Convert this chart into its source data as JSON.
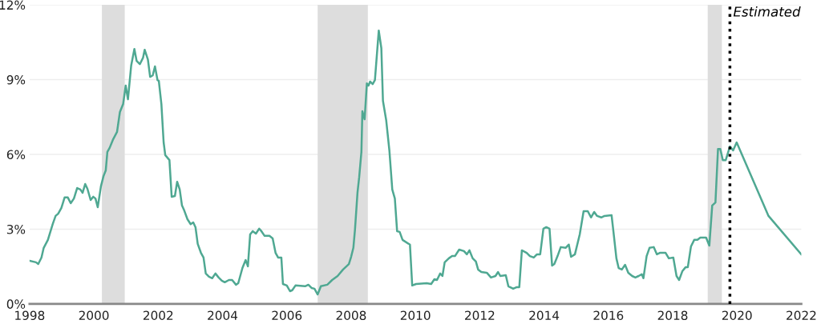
{
  "chart_data": {
    "type": "line",
    "xlim": [
      1998,
      2022
    ],
    "xticks": [
      1998,
      2000,
      2002,
      2004,
      2006,
      2008,
      2010,
      2012,
      2014,
      2016,
      2018,
      2020,
      2022
    ],
    "ylim": [
      0,
      12
    ],
    "yticks": [
      {
        "value": 0,
        "label": "0%"
      },
      {
        "value": 3,
        "label": "3%"
      },
      {
        "value": 6,
        "label": "6%"
      },
      {
        "value": 9,
        "label": "9%"
      },
      {
        "value": 12,
        "label": "12%"
      }
    ],
    "grid": "y",
    "legend": false,
    "marker": "none",
    "line_style": "solid",
    "bands": [
      {
        "axis": "x",
        "from": 2000.25,
        "to": 2000.96,
        "color": "#dddddd"
      },
      {
        "axis": "x",
        "from": 2006.96,
        "to": 2008.52,
        "color": "#dddddd"
      },
      {
        "axis": "x",
        "from": 2019.09,
        "to": 2019.53,
        "color": "#dddddd"
      }
    ],
    "ref_lines": [
      {
        "axis": "x",
        "value": 2019.78,
        "label": "Estimated",
        "color": "#000000",
        "line_style": "dotted"
      }
    ],
    "series": [
      {
        "color": "#4fa892",
        "x": [
          1998.0,
          1998.2,
          1998.27,
          1998.37,
          1998.44,
          1998.57,
          1998.72,
          1998.81,
          1998.89,
          1998.99,
          1999.09,
          1999.19,
          1999.28,
          1999.38,
          1999.48,
          1999.58,
          1999.65,
          1999.73,
          1999.8,
          1999.9,
          1999.98,
          2000.05,
          2000.12,
          2000.22,
          2000.3,
          2000.37,
          2000.42,
          2000.49,
          2000.59,
          2000.72,
          2000.81,
          2000.91,
          2000.99,
          2001.06,
          2001.16,
          2001.26,
          2001.33,
          2001.43,
          2001.53,
          2001.58,
          2001.68,
          2001.75,
          2001.83,
          2001.9,
          2001.98,
          2002.02,
          2002.1,
          2002.17,
          2002.22,
          2002.35,
          2002.42,
          2002.52,
          2002.59,
          2002.67,
          2002.74,
          2002.81,
          2002.91,
          2003.01,
          2003.09,
          2003.16,
          2003.23,
          2003.33,
          2003.41,
          2003.48,
          2003.58,
          2003.68,
          2003.78,
          2003.88,
          2003.98,
          2004.07,
          2004.2,
          2004.3,
          2004.42,
          2004.49,
          2004.62,
          2004.72,
          2004.79,
          2004.86,
          2004.94,
          2005.04,
          2005.14,
          2005.21,
          2005.31,
          2005.46,
          2005.56,
          2005.65,
          2005.73,
          2005.83,
          2005.88,
          2006.0,
          2006.1,
          2006.17,
          2006.27,
          2006.57,
          2006.67,
          2006.77,
          2006.86,
          2006.96,
          2007.06,
          2007.26,
          2007.41,
          2007.58,
          2007.75,
          2007.93,
          2008.0,
          2008.07,
          2008.12,
          2008.2,
          2008.25,
          2008.32,
          2008.35,
          2008.42,
          2008.49,
          2008.54,
          2008.59,
          2008.67,
          2008.74,
          2008.86,
          2008.94,
          2008.99,
          2009.09,
          2009.19,
          2009.28,
          2009.36,
          2009.43,
          2009.51,
          2009.6,
          2009.83,
          2009.9,
          2010.02,
          2010.35,
          2010.49,
          2010.59,
          2010.67,
          2010.77,
          2010.84,
          2010.91,
          2011.04,
          2011.14,
          2011.23,
          2011.36,
          2011.51,
          2011.6,
          2011.68,
          2011.78,
          2011.88,
          2011.95,
          2012.05,
          2012.22,
          2012.35,
          2012.49,
          2012.57,
          2012.64,
          2012.81,
          2012.89,
          2013.04,
          2013.14,
          2013.23,
          2013.31,
          2013.46,
          2013.56,
          2013.68,
          2013.78,
          2013.88,
          2013.98,
          2014.07,
          2014.17,
          2014.25,
          2014.32,
          2014.42,
          2014.52,
          2014.67,
          2014.77,
          2014.84,
          2014.96,
          2015.11,
          2015.23,
          2015.36,
          2015.46,
          2015.56,
          2015.65,
          2015.78,
          2015.88,
          2016.1,
          2016.17,
          2016.25,
          2016.32,
          2016.42,
          2016.52,
          2016.62,
          2016.74,
          2016.84,
          2016.94,
          2017.04,
          2017.09,
          2017.19,
          2017.28,
          2017.41,
          2017.51,
          2017.6,
          2017.78,
          2017.88,
          2018.02,
          2018.12,
          2018.2,
          2018.3,
          2018.4,
          2018.47,
          2018.57,
          2018.67,
          2018.77,
          2018.86,
          2019.04,
          2019.14,
          2019.23,
          2019.33,
          2019.41,
          2019.48,
          2019.56,
          2019.65,
          2019.78,
          2019.88,
          2019.99,
          2020.98,
          2022.0
        ],
        "values": [
          1.73,
          1.67,
          1.6,
          1.86,
          2.25,
          2.57,
          3.2,
          3.53,
          3.62,
          3.85,
          4.27,
          4.27,
          4.04,
          4.23,
          4.65,
          4.59,
          4.46,
          4.81,
          4.62,
          4.17,
          4.3,
          4.23,
          3.88,
          4.72,
          5.13,
          5.36,
          6.1,
          6.26,
          6.58,
          6.9,
          7.7,
          8.02,
          8.76,
          8.21,
          9.56,
          10.23,
          9.75,
          9.62,
          9.88,
          10.2,
          9.81,
          9.11,
          9.17,
          9.53,
          8.98,
          8.95,
          8.02,
          6.48,
          5.97,
          5.77,
          4.3,
          4.33,
          4.9,
          4.59,
          3.95,
          3.75,
          3.4,
          3.2,
          3.27,
          3.08,
          2.41,
          2.05,
          1.86,
          1.22,
          1.09,
          1.03,
          1.22,
          1.06,
          0.93,
          0.87,
          0.96,
          0.96,
          0.77,
          0.83,
          1.44,
          1.76,
          1.51,
          2.79,
          2.92,
          2.82,
          3.02,
          2.92,
          2.73,
          2.73,
          2.63,
          2.05,
          1.86,
          1.86,
          0.8,
          0.74,
          0.51,
          0.55,
          0.74,
          0.71,
          0.77,
          0.64,
          0.61,
          0.38,
          0.71,
          0.77,
          0.96,
          1.12,
          1.38,
          1.6,
          1.89,
          2.25,
          2.98,
          4.49,
          5.07,
          6.1,
          7.73,
          7.41,
          8.85,
          8.76,
          8.92,
          8.82,
          8.98,
          10.97,
          10.26,
          8.15,
          7.38,
          6.16,
          4.59,
          4.23,
          2.92,
          2.89,
          2.57,
          2.38,
          0.74,
          0.8,
          0.83,
          0.8,
          0.99,
          0.96,
          1.22,
          1.12,
          1.67,
          1.83,
          1.92,
          1.92,
          2.18,
          2.12,
          1.99,
          2.15,
          1.83,
          1.7,
          1.38,
          1.28,
          1.25,
          1.06,
          1.12,
          1.28,
          1.12,
          1.15,
          0.71,
          0.61,
          0.67,
          0.67,
          2.15,
          2.05,
          1.92,
          1.86,
          1.99,
          1.99,
          3.02,
          3.08,
          3.02,
          1.54,
          1.6,
          1.92,
          2.28,
          2.25,
          2.38,
          1.89,
          1.99,
          2.79,
          3.72,
          3.72,
          3.47,
          3.69,
          3.53,
          3.47,
          3.53,
          3.56,
          2.76,
          1.83,
          1.44,
          1.38,
          1.57,
          1.25,
          1.12,
          1.06,
          1.12,
          1.19,
          1.03,
          1.92,
          2.25,
          2.28,
          1.99,
          2.05,
          2.05,
          1.83,
          1.86,
          1.12,
          0.96,
          1.31,
          1.47,
          1.47,
          2.31,
          2.57,
          2.57,
          2.66,
          2.66,
          2.34,
          3.95,
          4.07,
          6.22,
          6.22,
          5.77,
          5.77,
          6.32,
          6.16,
          6.48,
          3.53,
          1.99
        ]
      }
    ]
  }
}
